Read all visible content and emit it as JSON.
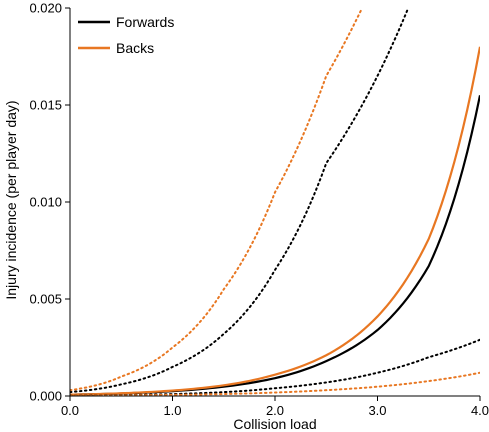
{
  "chart_data": {
    "type": "line",
    "xlabel": "Collision load",
    "ylabel": "Injury incidence (per player day)",
    "xlim": [
      0.0,
      4.0
    ],
    "ylim": [
      0.0,
      0.02
    ],
    "x_ticks": [
      "0.0",
      "1.0",
      "2.0",
      "3.0",
      "4.0"
    ],
    "y_ticks": [
      "0.000",
      "0.005",
      "0.010",
      "0.015",
      "0.020"
    ],
    "grid": false,
    "legend_position": "top-left",
    "series": [
      {
        "name": "Forwards",
        "color": "#000000",
        "style": "solid",
        "x": [
          0.0,
          0.5,
          1.0,
          1.5,
          2.0,
          2.5,
          3.0,
          3.5,
          4.0
        ],
        "y": [
          7e-05,
          0.00013,
          0.00025,
          0.00048,
          0.00092,
          0.0018,
          0.0034,
          0.0067,
          0.0155
        ]
      },
      {
        "name": "Backs",
        "color": "#E87722",
        "style": "solid",
        "x": [
          0.0,
          0.5,
          1.0,
          1.5,
          2.0,
          2.5,
          3.0,
          3.5,
          4.0
        ],
        "y": [
          7e-05,
          0.00014,
          0.00028,
          0.00055,
          0.0011,
          0.0021,
          0.0041,
          0.0081,
          0.018
        ]
      },
      {
        "color": "#000000",
        "style": "dotted",
        "x": [
          0.0,
          0.5,
          1.0,
          1.5,
          2.0,
          2.5,
          3.0,
          3.3
        ],
        "y": [
          0.0002,
          0.0006,
          0.0015,
          0.0032,
          0.0065,
          0.012,
          0.0165,
          0.02
        ]
      },
      {
        "color": "#000000",
        "style": "dotted",
        "x": [
          0.0,
          0.5,
          1.0,
          1.5,
          2.0,
          2.5,
          3.0,
          3.5,
          4.0
        ],
        "y": [
          2e-05,
          5e-05,
          0.0001,
          0.0002,
          0.0004,
          0.0007,
          0.0012,
          0.002,
          0.0029
        ]
      },
      {
        "color": "#E87722",
        "style": "dotted",
        "x": [
          0.0,
          0.5,
          1.0,
          1.5,
          2.0,
          2.5,
          2.85
        ],
        "y": [
          0.0003,
          0.001,
          0.0025,
          0.0055,
          0.0105,
          0.0165,
          0.02
        ]
      },
      {
        "color": "#E87722",
        "style": "dotted",
        "x": [
          0.0,
          0.5,
          1.0,
          1.5,
          2.0,
          2.5,
          3.0,
          3.5,
          4.0
        ],
        "y": [
          1e-05,
          3e-05,
          6e-05,
          0.0001,
          0.00018,
          0.0003,
          0.00048,
          0.00077,
          0.0012
        ]
      }
    ]
  }
}
